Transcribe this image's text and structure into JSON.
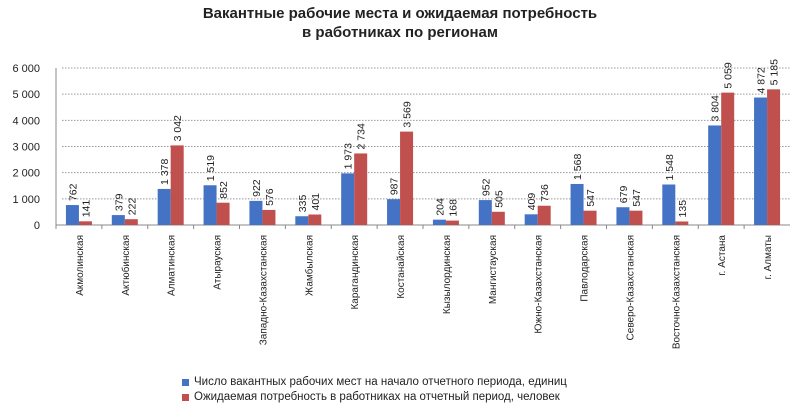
{
  "chart_data": {
    "type": "bar",
    "title": "Вакантные рабочие места и ожидаемая потребность",
    "subtitle": "в работниках по регионам",
    "xlabel": "",
    "ylabel": "",
    "ylim": [
      0,
      6000
    ],
    "yticks": [
      0,
      1000,
      2000,
      3000,
      4000,
      5000,
      6000
    ],
    "ytick_labels": [
      "0",
      "1 000",
      "2 000",
      "3 000",
      "4 000",
      "5 000",
      "6 000"
    ],
    "grid": true,
    "legend_position": "bottom",
    "categories": [
      "Акмолинская",
      "Актюбинская",
      "Алматинская",
      "Атырауская",
      "Западно-Казахстанская",
      "Жамбылская",
      "Карагандинская",
      "Костанайская",
      "Кызылординская",
      "Мангистауская",
      "Южно-Казахстанская",
      "Павлодарская",
      "Северо-Казахстанская",
      "Восточно-Казахстанская",
      "г. Астана",
      "г. Алматы"
    ],
    "series": [
      {
        "name": "Число вакантных рабочих мест на начало отчетного периода, единиц",
        "color": "#4472C4",
        "values": [
          762,
          379,
          1378,
          1519,
          922,
          335,
          1973,
          987,
          204,
          952,
          409,
          1568,
          679,
          1548,
          3804,
          4872
        ]
      },
      {
        "name": "Ожидаемая потребность в работниках на отчетный период, человек",
        "color": "#C0504D",
        "values": [
          141,
          222,
          3042,
          852,
          576,
          401,
          2734,
          3569,
          168,
          505,
          736,
          547,
          547,
          135,
          5059,
          5185
        ]
      }
    ]
  }
}
